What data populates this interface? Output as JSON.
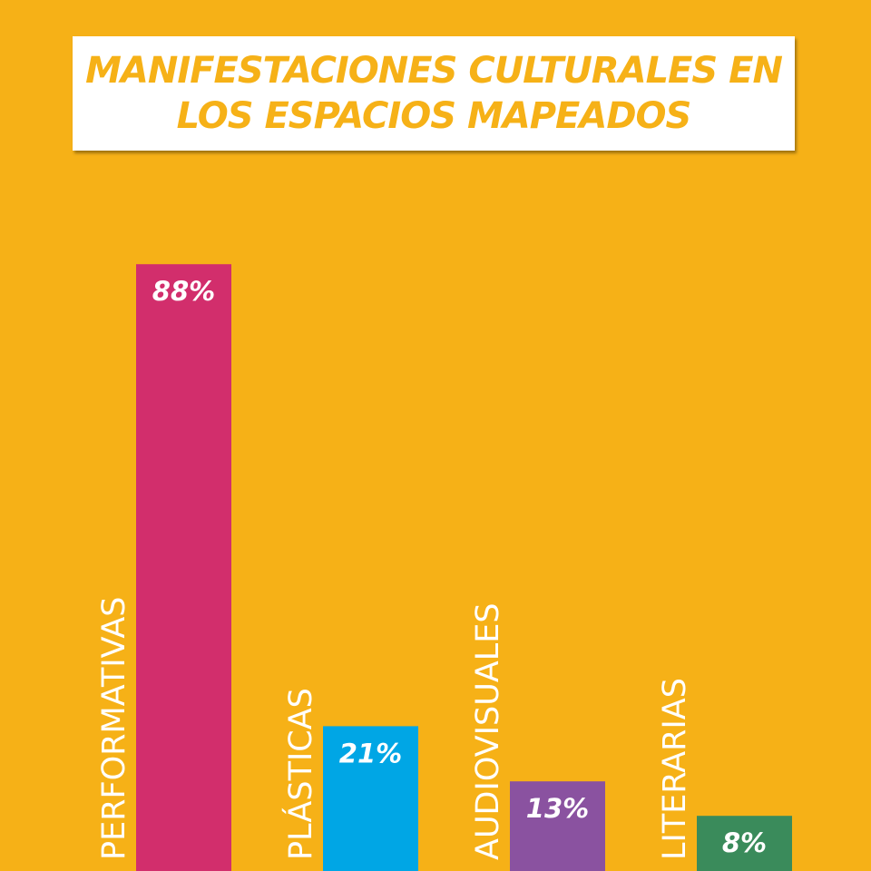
{
  "colors": {
    "background": "#F6B117",
    "title_text": "#F6B117",
    "title_box": "#FFFFFF"
  },
  "title": {
    "line1": "MANIFESTACIONES CULTURALES EN",
    "line2": "LOS ESPACIOS MAPEADOS"
  },
  "chart_data": {
    "type": "bar",
    "title": "MANIFESTACIONES CULTURALES EN LOS ESPACIOS MAPEADOS",
    "categories": [
      "PERFORMATIVAS",
      "PLÁSTICAS",
      "AUDIOVISUALES",
      "LITERARIAS"
    ],
    "values": [
      88,
      21,
      13,
      8
    ],
    "value_labels": [
      "88%",
      "21%",
      "13%",
      "8%"
    ],
    "colors": [
      "#D22E6C",
      "#00A6E5",
      "#8A52A0",
      "#3A8B5B"
    ],
    "unit": "%",
    "grid": false,
    "legend": "none",
    "category_label_orientation": "vertical"
  }
}
